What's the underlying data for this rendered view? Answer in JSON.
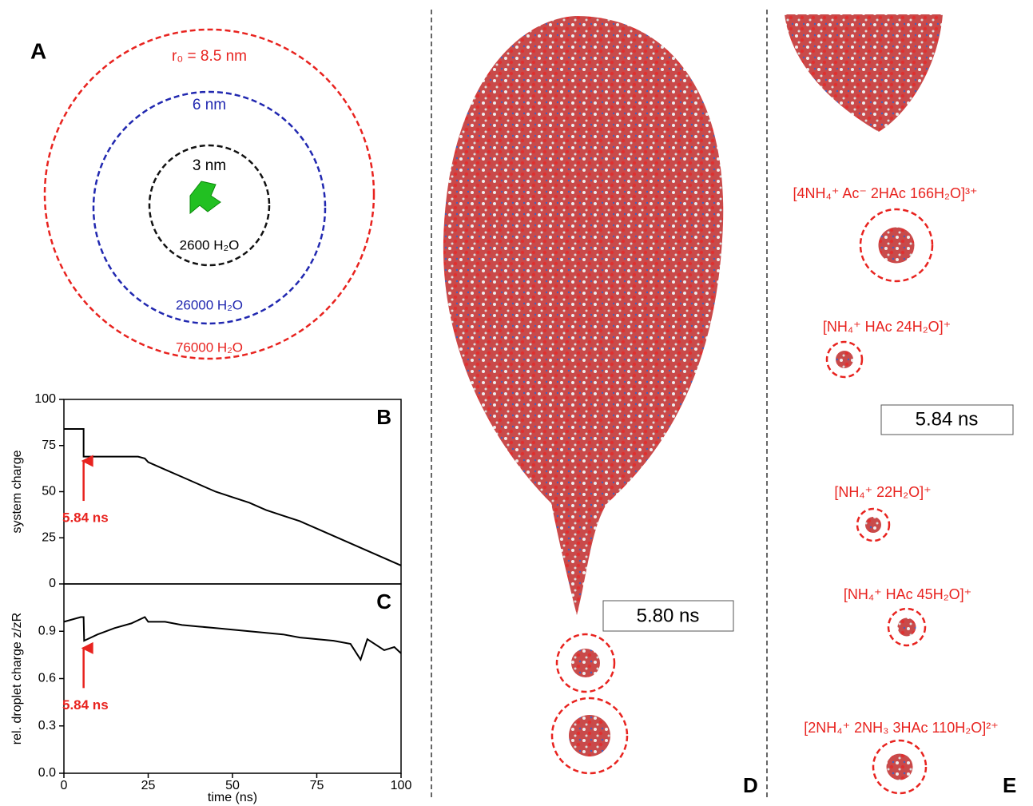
{
  "panel_a": {
    "label": "A",
    "circles": [
      {
        "radius_label": "r₀ = 8.5 nm",
        "count_label": "76000 H₂O"
      },
      {
        "radius_label": "6 nm",
        "count_label": "26000 H₂O"
      },
      {
        "radius_label": "3 nm",
        "count_label": "2600 H₂O"
      }
    ]
  },
  "chart_data": [
    {
      "type": "line",
      "label": "B",
      "ylabel": "system charge",
      "x": [
        0,
        5.84,
        5.84,
        22,
        24,
        25,
        30,
        35,
        40,
        45,
        50,
        55,
        60,
        65,
        70,
        75,
        80,
        85,
        90,
        95,
        100
      ],
      "values": [
        84,
        84,
        69,
        69,
        68,
        66,
        62,
        58,
        54,
        50,
        47,
        44,
        40,
        37,
        34,
        30,
        26,
        22,
        18,
        14,
        10
      ],
      "color": "#000000",
      "xlim": [
        0,
        100
      ],
      "ylim": [
        0,
        100
      ],
      "yticks": [
        0,
        25,
        50,
        75,
        100
      ],
      "annotation": {
        "text": "5.84 ns",
        "x": 5.84
      }
    },
    {
      "type": "line",
      "label": "C",
      "ylabel": "rel. droplet charge z/zR",
      "xlabel": "time (ns)",
      "x": [
        0,
        5,
        5.84,
        6,
        10,
        15,
        20,
        24,
        25,
        30,
        35,
        40,
        45,
        50,
        55,
        60,
        65,
        70,
        75,
        80,
        85,
        88,
        90,
        95,
        98,
        100
      ],
      "values": [
        0.96,
        0.99,
        0.99,
        0.84,
        0.88,
        0.92,
        0.95,
        0.99,
        0.96,
        0.96,
        0.94,
        0.93,
        0.92,
        0.91,
        0.9,
        0.89,
        0.88,
        0.86,
        0.85,
        0.84,
        0.82,
        0.72,
        0.85,
        0.78,
        0.8,
        0.76
      ],
      "color": "#000000",
      "xlim": [
        0,
        100
      ],
      "ylim": [
        0,
        1.2
      ],
      "xticks": [
        0,
        25,
        50,
        75,
        100
      ],
      "yticks": [
        {
          "value": 0,
          "label": "0.0"
        },
        0.3,
        0.6,
        0.9
      ],
      "annotation": {
        "text": "5.84 ns",
        "x": 5.84
      }
    }
  ],
  "panel_d": {
    "label": "D",
    "time": "5.80 ns"
  },
  "panel_e": {
    "label": "E",
    "time": "5.84 ns",
    "clusters": [
      "[4NH₄⁺ Ac⁻ 2HAc 166H₂O]³⁺",
      "[NH₄⁺ HAc 24H₂O]⁺",
      "[NH₄⁺ 22H₂O]⁺",
      "[NH₄⁺ HAc 45H₂O]⁺",
      "[2NH₄⁺ 2NH₃ 3HAc 110H₂O]²⁺"
    ]
  }
}
